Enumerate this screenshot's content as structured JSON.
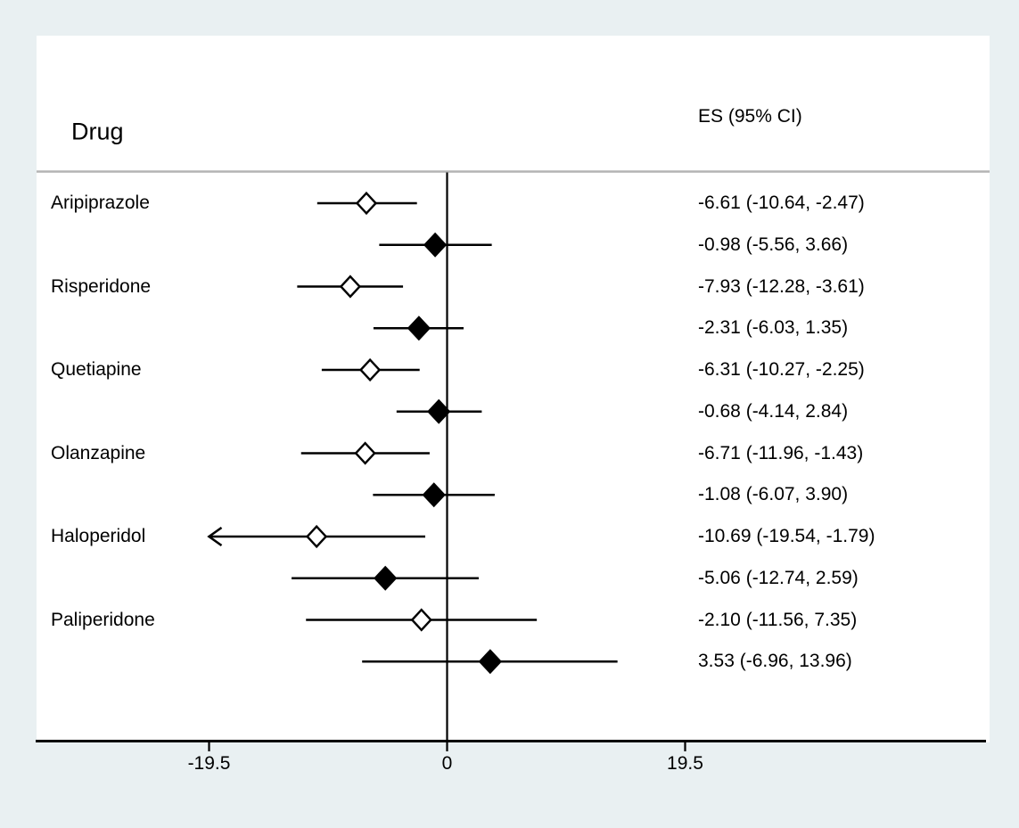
{
  "chart_data": {
    "type": "forest",
    "columns": {
      "drug_header": "Drug",
      "es_header": "ES (95% CI)"
    },
    "xticks": [
      -19.5,
      0,
      19.5
    ],
    "xtick_labels": [
      "-19.5",
      "0",
      "19.5"
    ],
    "xlim": [
      -19.5,
      19.5
    ],
    "zero_line": 0,
    "rows": [
      {
        "drug": "Aripiprazole",
        "es": -6.61,
        "lo": -10.64,
        "hi": -2.47,
        "marker": "open",
        "arrow_lo": false,
        "es_label": "-6.61 (-10.64, -2.47)"
      },
      {
        "drug": "",
        "es": -0.98,
        "lo": -5.56,
        "hi": 3.66,
        "marker": "filled",
        "arrow_lo": false,
        "es_label": "-0.98 (-5.56, 3.66)"
      },
      {
        "drug": "Risperidone",
        "es": -7.93,
        "lo": -12.28,
        "hi": -3.61,
        "marker": "open",
        "arrow_lo": false,
        "es_label": "-7.93 (-12.28, -3.61)"
      },
      {
        "drug": "",
        "es": -2.31,
        "lo": -6.03,
        "hi": 1.35,
        "marker": "filled",
        "arrow_lo": false,
        "es_label": "-2.31 (-6.03, 1.35)"
      },
      {
        "drug": "Quetiapine",
        "es": -6.31,
        "lo": -10.27,
        "hi": -2.25,
        "marker": "open",
        "arrow_lo": false,
        "es_label": "-6.31 (-10.27, -2.25)"
      },
      {
        "drug": "",
        "es": -0.68,
        "lo": -4.14,
        "hi": 2.84,
        "marker": "filled",
        "arrow_lo": false,
        "es_label": "-0.68 (-4.14, 2.84)"
      },
      {
        "drug": "Olanzapine",
        "es": -6.71,
        "lo": -11.96,
        "hi": -1.43,
        "marker": "open",
        "arrow_lo": false,
        "es_label": "-6.71 (-11.96, -1.43)"
      },
      {
        "drug": "",
        "es": -1.08,
        "lo": -6.07,
        "hi": 3.9,
        "marker": "filled",
        "arrow_lo": false,
        "es_label": "-1.08 (-6.07, 3.90)"
      },
      {
        "drug": "Haloperidol",
        "es": -10.69,
        "lo": -19.54,
        "hi": -1.79,
        "marker": "open",
        "arrow_lo": true,
        "es_label": "-10.69 (-19.54, -1.79)"
      },
      {
        "drug": "",
        "es": -5.06,
        "lo": -12.74,
        "hi": 2.59,
        "marker": "filled",
        "arrow_lo": false,
        "es_label": "-5.06 (-12.74, 2.59)"
      },
      {
        "drug": "Paliperidone",
        "es": -2.1,
        "lo": -11.56,
        "hi": 7.35,
        "marker": "open",
        "arrow_lo": false,
        "es_label": "-2.10 (-11.56, 7.35)"
      },
      {
        "drug": "",
        "es": 3.53,
        "lo": -6.96,
        "hi": 13.96,
        "marker": "filled",
        "arrow_lo": false,
        "es_label": "3.53 (-6.96, 13.96)"
      }
    ],
    "colors": {
      "background": "#e9f0f2",
      "plot_background": "#ffffff",
      "line": "#000000",
      "header_rule": "#b4b4b4"
    }
  }
}
